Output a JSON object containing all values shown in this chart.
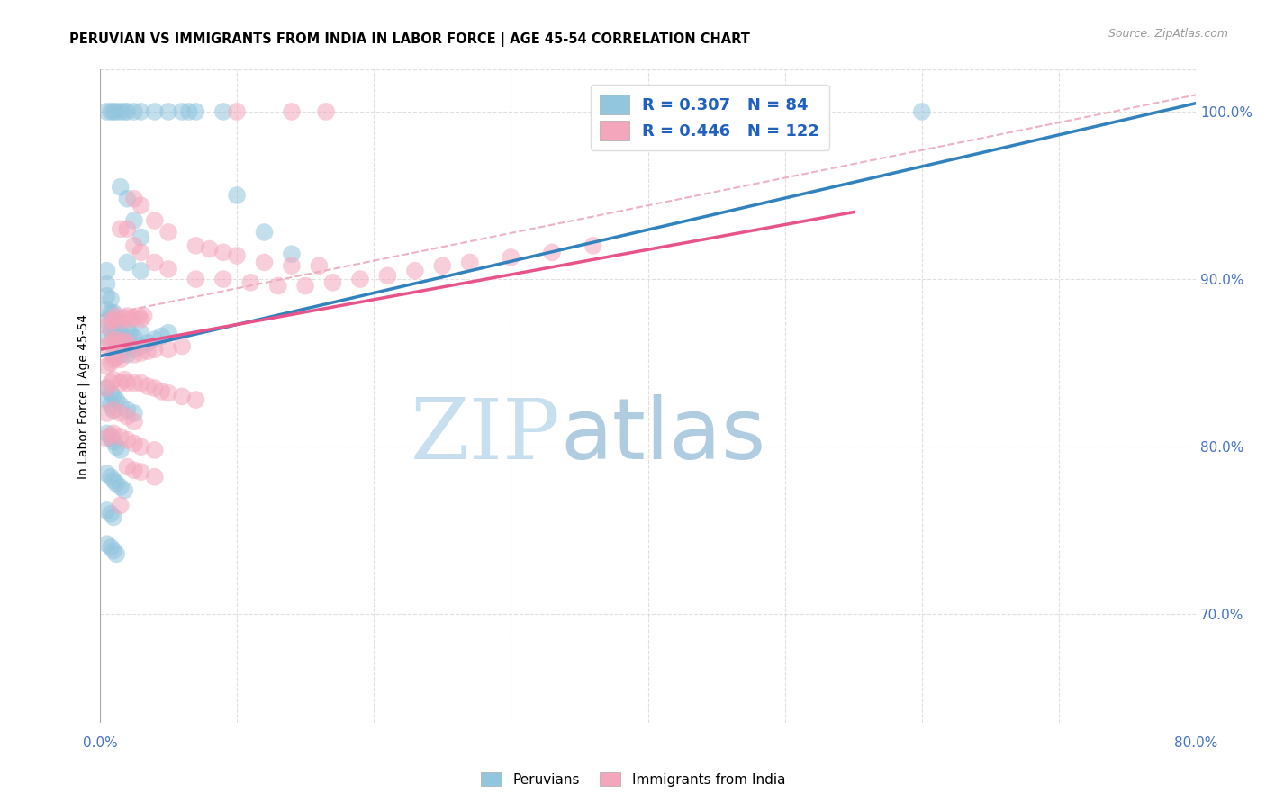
{
  "title": "PERUVIAN VS IMMIGRANTS FROM INDIA IN LABOR FORCE | AGE 45-54 CORRELATION CHART",
  "source": "Source: ZipAtlas.com",
  "ylabel": "In Labor Force | Age 45-54",
  "xlim": [
    0.0,
    0.8
  ],
  "ylim": [
    0.635,
    1.025
  ],
  "blue_R": 0.307,
  "blue_N": 84,
  "pink_R": 0.446,
  "pink_N": 122,
  "blue_color": "#92c5de",
  "pink_color": "#f4a6bc",
  "blue_line_color": "#3182bd",
  "pink_line_color": "#e8538a",
  "dashed_line_color": "#e8a0b4",
  "watermark_zip": "ZIP",
  "watermark_atlas": "atlas",
  "watermark_color_zip": "#c8dff0",
  "watermark_color_atlas": "#b0cce0",
  "legend_R_N_color": "#2060c0",
  "right_tick_color": "#4472c4",
  "grid_color": "#d8d8d8",
  "blue_scatter": [
    [
      0.005,
      0.865
    ],
    [
      0.005,
      0.875
    ],
    [
      0.005,
      0.882
    ],
    [
      0.005,
      0.89
    ],
    [
      0.005,
      0.897
    ],
    [
      0.005,
      0.905
    ],
    [
      0.008,
      0.87
    ],
    [
      0.008,
      0.88
    ],
    [
      0.008,
      0.888
    ],
    [
      0.01,
      0.855
    ],
    [
      0.01,
      0.865
    ],
    [
      0.01,
      0.872
    ],
    [
      0.01,
      0.88
    ],
    [
      0.012,
      0.86
    ],
    [
      0.012,
      0.868
    ],
    [
      0.012,
      0.875
    ],
    [
      0.015,
      0.855
    ],
    [
      0.015,
      0.862
    ],
    [
      0.015,
      0.868
    ],
    [
      0.018,
      0.858
    ],
    [
      0.018,
      0.865
    ],
    [
      0.02,
      0.855
    ],
    [
      0.02,
      0.862
    ],
    [
      0.02,
      0.87
    ],
    [
      0.022,
      0.86
    ],
    [
      0.022,
      0.868
    ],
    [
      0.025,
      0.858
    ],
    [
      0.025,
      0.865
    ],
    [
      0.03,
      0.86
    ],
    [
      0.03,
      0.868
    ],
    [
      0.035,
      0.862
    ],
    [
      0.04,
      0.864
    ],
    [
      0.045,
      0.866
    ],
    [
      0.05,
      0.868
    ],
    [
      0.005,
      0.835
    ],
    [
      0.005,
      0.828
    ],
    [
      0.008,
      0.832
    ],
    [
      0.008,
      0.825
    ],
    [
      0.01,
      0.83
    ],
    [
      0.01,
      0.822
    ],
    [
      0.012,
      0.828
    ],
    [
      0.015,
      0.825
    ],
    [
      0.02,
      0.822
    ],
    [
      0.025,
      0.82
    ],
    [
      0.005,
      0.808
    ],
    [
      0.008,
      0.805
    ],
    [
      0.01,
      0.803
    ],
    [
      0.012,
      0.8
    ],
    [
      0.015,
      0.798
    ],
    [
      0.005,
      0.784
    ],
    [
      0.008,
      0.782
    ],
    [
      0.01,
      0.78
    ],
    [
      0.012,
      0.778
    ],
    [
      0.015,
      0.776
    ],
    [
      0.018,
      0.774
    ],
    [
      0.005,
      0.762
    ],
    [
      0.008,
      0.76
    ],
    [
      0.01,
      0.758
    ],
    [
      0.005,
      0.742
    ],
    [
      0.008,
      0.74
    ],
    [
      0.01,
      0.738
    ],
    [
      0.012,
      0.736
    ],
    [
      0.005,
      1.0
    ],
    [
      0.008,
      1.0
    ],
    [
      0.01,
      1.0
    ],
    [
      0.012,
      1.0
    ],
    [
      0.015,
      1.0
    ],
    [
      0.018,
      1.0
    ],
    [
      0.02,
      1.0
    ],
    [
      0.025,
      1.0
    ],
    [
      0.03,
      1.0
    ],
    [
      0.04,
      1.0
    ],
    [
      0.05,
      1.0
    ],
    [
      0.06,
      1.0
    ],
    [
      0.065,
      1.0
    ],
    [
      0.07,
      1.0
    ],
    [
      0.09,
      1.0
    ],
    [
      0.6,
      1.0
    ],
    [
      0.015,
      0.955
    ],
    [
      0.02,
      0.948
    ],
    [
      0.025,
      0.935
    ],
    [
      0.03,
      0.925
    ],
    [
      0.1,
      0.95
    ],
    [
      0.12,
      0.928
    ],
    [
      0.14,
      0.915
    ],
    [
      0.02,
      0.91
    ],
    [
      0.03,
      0.905
    ]
  ],
  "pink_scatter": [
    [
      0.005,
      0.872
    ],
    [
      0.008,
      0.875
    ],
    [
      0.01,
      0.876
    ],
    [
      0.012,
      0.878
    ],
    [
      0.015,
      0.875
    ],
    [
      0.018,
      0.877
    ],
    [
      0.02,
      0.878
    ],
    [
      0.022,
      0.876
    ],
    [
      0.025,
      0.877
    ],
    [
      0.028,
      0.878
    ],
    [
      0.03,
      0.876
    ],
    [
      0.032,
      0.878
    ],
    [
      0.005,
      0.86
    ],
    [
      0.008,
      0.862
    ],
    [
      0.01,
      0.863
    ],
    [
      0.012,
      0.864
    ],
    [
      0.015,
      0.862
    ],
    [
      0.018,
      0.863
    ],
    [
      0.02,
      0.862
    ],
    [
      0.005,
      0.848
    ],
    [
      0.008,
      0.85
    ],
    [
      0.01,
      0.852
    ],
    [
      0.012,
      0.853
    ],
    [
      0.015,
      0.852
    ],
    [
      0.025,
      0.855
    ],
    [
      0.03,
      0.856
    ],
    [
      0.035,
      0.857
    ],
    [
      0.04,
      0.858
    ],
    [
      0.05,
      0.858
    ],
    [
      0.06,
      0.86
    ],
    [
      0.005,
      0.835
    ],
    [
      0.008,
      0.838
    ],
    [
      0.01,
      0.84
    ],
    [
      0.015,
      0.838
    ],
    [
      0.018,
      0.84
    ],
    [
      0.02,
      0.838
    ],
    [
      0.025,
      0.838
    ],
    [
      0.03,
      0.838
    ],
    [
      0.035,
      0.836
    ],
    [
      0.04,
      0.835
    ],
    [
      0.045,
      0.833
    ],
    [
      0.05,
      0.832
    ],
    [
      0.06,
      0.83
    ],
    [
      0.07,
      0.828
    ],
    [
      0.005,
      0.82
    ],
    [
      0.01,
      0.822
    ],
    [
      0.015,
      0.82
    ],
    [
      0.02,
      0.818
    ],
    [
      0.025,
      0.815
    ],
    [
      0.005,
      0.805
    ],
    [
      0.008,
      0.807
    ],
    [
      0.01,
      0.808
    ],
    [
      0.015,
      0.806
    ],
    [
      0.02,
      0.804
    ],
    [
      0.025,
      0.802
    ],
    [
      0.03,
      0.8
    ],
    [
      0.04,
      0.798
    ],
    [
      0.02,
      0.788
    ],
    [
      0.025,
      0.786
    ],
    [
      0.03,
      0.785
    ],
    [
      0.04,
      0.782
    ],
    [
      0.015,
      0.765
    ],
    [
      0.015,
      0.93
    ],
    [
      0.02,
      0.93
    ],
    [
      0.025,
      0.92
    ],
    [
      0.03,
      0.916
    ],
    [
      0.04,
      0.91
    ],
    [
      0.05,
      0.906
    ],
    [
      0.07,
      0.9
    ],
    [
      0.09,
      0.9
    ],
    [
      0.11,
      0.898
    ],
    [
      0.13,
      0.896
    ],
    [
      0.15,
      0.896
    ],
    [
      0.17,
      0.898
    ],
    [
      0.19,
      0.9
    ],
    [
      0.21,
      0.902
    ],
    [
      0.23,
      0.905
    ],
    [
      0.25,
      0.908
    ],
    [
      0.27,
      0.91
    ],
    [
      0.3,
      0.913
    ],
    [
      0.33,
      0.916
    ],
    [
      0.36,
      0.92
    ],
    [
      0.025,
      0.948
    ],
    [
      0.03,
      0.944
    ],
    [
      0.04,
      0.935
    ],
    [
      0.05,
      0.928
    ],
    [
      0.07,
      0.92
    ],
    [
      0.08,
      0.918
    ],
    [
      0.09,
      0.916
    ],
    [
      0.1,
      0.914
    ],
    [
      0.12,
      0.91
    ],
    [
      0.14,
      0.908
    ],
    [
      0.16,
      0.908
    ],
    [
      0.1,
      1.0
    ],
    [
      0.14,
      1.0
    ],
    [
      0.165,
      1.0
    ]
  ],
  "blue_trend_x": [
    0.0,
    0.8
  ],
  "blue_trend_y": [
    0.854,
    1.005
  ],
  "pink_trend_x": [
    0.0,
    0.55
  ],
  "pink_trend_y": [
    0.858,
    0.94
  ],
  "dashed_trend_x": [
    0.0,
    0.8
  ],
  "dashed_trend_y": [
    0.878,
    1.01
  ],
  "y_ticks": [
    0.7,
    0.8,
    0.9,
    1.0
  ],
  "y_tick_labels": [
    "70.0%",
    "80.0%",
    "90.0%",
    "100.0%"
  ],
  "x_bottom_left": "0.0%",
  "x_bottom_right": "80.0%",
  "legend_labels": [
    "Peruvians",
    "Immigrants from India"
  ],
  "title_fontsize": 10.5,
  "axis_label_fontsize": 10,
  "tick_fontsize": 11,
  "source_fontsize": 9,
  "scatter_size": 200,
  "scatter_alpha": 0.55
}
